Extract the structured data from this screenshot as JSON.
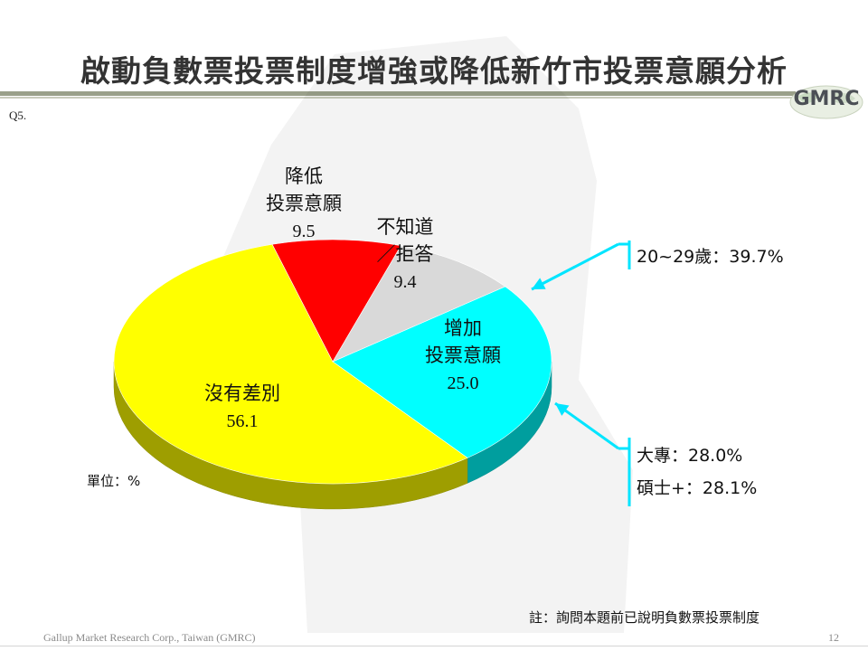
{
  "header": {
    "title": "啟動負數票投票制度增強或降低新竹市投票意願分析",
    "logo": "GMRC",
    "question_no": "Q5."
  },
  "chart_data": {
    "type": "pie",
    "unit_label": "單位：%",
    "slices": [
      {
        "label_lines": [
          "增加",
          "投票意願"
        ],
        "value": 25.0,
        "value_text": "25.0",
        "color": "#00ffff"
      },
      {
        "label_lines": [
          "沒有差別"
        ],
        "value": 56.1,
        "value_text": "56.1",
        "color": "#ffff00"
      },
      {
        "label_lines": [
          "降低",
          "投票意願"
        ],
        "value": 9.5,
        "value_text": "9.5",
        "color": "#ff0000"
      },
      {
        "label_lines": [
          "不知道",
          "／拒答"
        ],
        "value": 9.4,
        "value_text": "9.4",
        "color": "#d9d9d9"
      }
    ],
    "annotations": [
      {
        "lines": [
          "20~29歲：39.7%"
        ],
        "color": "#00e5ff"
      },
      {
        "lines": [
          "大專：28.0%",
          "碩士+：28.1%"
        ],
        "color": "#00e5ff"
      }
    ]
  },
  "footer": {
    "note": "註：詢問本題前已說明負數票投票制度",
    "company": "Gallup Market Research Corp., Taiwan (GMRC)",
    "page": "12"
  },
  "colors": {
    "title": "#333333",
    "rule": "#9aa08a",
    "cyan": "#00ffff",
    "yellow": "#ffff00",
    "red": "#ff0000",
    "gray": "#d9d9d9"
  }
}
